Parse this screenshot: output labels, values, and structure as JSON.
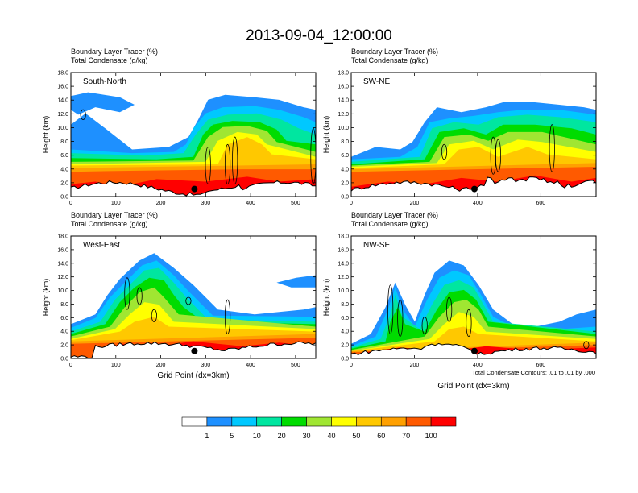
{
  "title": "2013-09-04_12:00:00",
  "panel_header_line1": "Boundary Layer Tracer   (%)",
  "panel_header_line2": "Total Condensate   (g/kg)",
  "ylabel": "Height (km)",
  "xlabel": "Grid Point (dx=3km)",
  "footnote": "Total Condensate Contours: .01 to .01 by .000",
  "colorbar": {
    "colors": [
      "#ffffff",
      "#1e90ff",
      "#00c8ff",
      "#00e6a0",
      "#00dc00",
      "#a0e632",
      "#ffff00",
      "#ffc800",
      "#ffa000",
      "#ff5a00",
      "#ff0000"
    ],
    "labels": [
      "1",
      "5",
      "10",
      "20",
      "30",
      "40",
      "50",
      "60",
      "70",
      "100"
    ]
  },
  "chart_data": [
    {
      "type": "heatmap",
      "name": "South-North",
      "xlabel": "",
      "ylabel": "Height (km)",
      "xlim": [
        0,
        545
      ],
      "ylim": [
        0,
        18
      ],
      "xticks": [
        "0",
        "100",
        "200",
        "300",
        "400",
        "500"
      ],
      "yticks": [
        "0.0",
        "2.0",
        "4.0",
        "6.0",
        "8.0",
        "10.0",
        "12.0",
        "14.0",
        "16.0",
        "18.0"
      ],
      "marker_x": 275,
      "marker_y": 1.1
    },
    {
      "type": "heatmap",
      "name": "SW-NE",
      "xlabel": "",
      "ylabel": "Height (km)",
      "xlim": [
        0,
        775
      ],
      "ylim": [
        0,
        18
      ],
      "xticks": [
        "0",
        "200",
        "400",
        "600"
      ],
      "yticks": [
        "0.0",
        "2.0",
        "4.0",
        "6.0",
        "8.0",
        "10.0",
        "12.0",
        "14.0",
        "16.0",
        "18.0"
      ],
      "marker_x": 390,
      "marker_y": 1.1
    },
    {
      "type": "heatmap",
      "name": "West-East",
      "xlabel": "Grid Point (dx=3km)",
      "ylabel": "Height (km)",
      "xlim": [
        0,
        545
      ],
      "ylim": [
        0,
        18
      ],
      "xticks": [
        "0",
        "100",
        "200",
        "300",
        "400",
        "500"
      ],
      "yticks": [
        "0.0",
        "2.0",
        "4.0",
        "6.0",
        "8.0",
        "10.0",
        "12.0",
        "14.0",
        "16.0",
        "18.0"
      ],
      "marker_x": 275,
      "marker_y": 1.1
    },
    {
      "type": "heatmap",
      "name": "NW-SE",
      "xlabel": "Grid Point (dx=3km)",
      "ylabel": "Height (km)",
      "xlim": [
        0,
        775
      ],
      "ylim": [
        0,
        18
      ],
      "xticks": [
        "0",
        "200",
        "400",
        "600"
      ],
      "yticks": [
        "0.0",
        "2.0",
        "4.0",
        "6.0",
        "8.0",
        "10.0",
        "12.0",
        "14.0",
        "16.0",
        "18.0"
      ],
      "marker_x": 390,
      "marker_y": 1.1
    }
  ]
}
